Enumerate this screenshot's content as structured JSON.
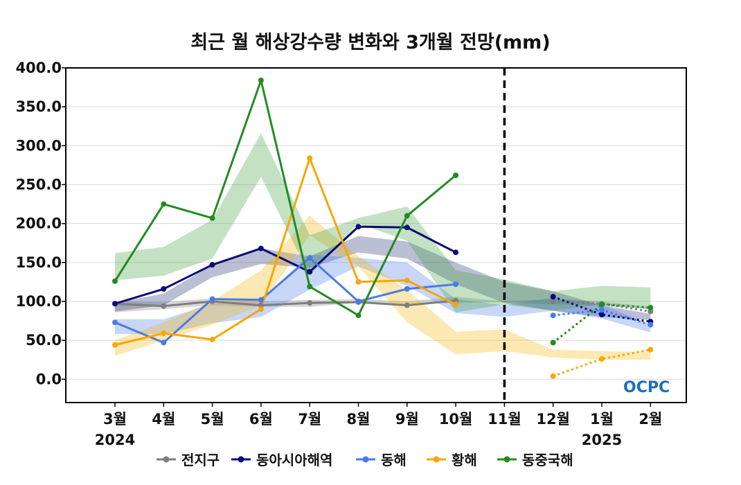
{
  "chart_data": {
    "type": "line",
    "title": "최근 월 해상강수량 변화와 3개월 전망(mm)",
    "categories": [
      "3월",
      "4월",
      "5월",
      "6월",
      "7월",
      "8월",
      "9월",
      "10월",
      "11월",
      "12월",
      "1월",
      "2월"
    ],
    "year_labels": [
      {
        "category": "3월",
        "text": "2024"
      },
      {
        "category": "1월",
        "text": "2025"
      }
    ],
    "ylim": [
      -30,
      400
    ],
    "yticks": [
      "0.0",
      "50.0",
      "100.0",
      "150.0",
      "200.0",
      "250.0",
      "300.0",
      "350.0",
      "400.0"
    ],
    "forecast_divider_category": "11월",
    "grid": true,
    "legend_position": "bottom",
    "logo": "OCPC",
    "series": [
      {
        "name": "전지구",
        "color": "#7f7f7f",
        "band_color": "#7f7f7f",
        "observed": [
          97,
          94,
          100,
          95,
          98,
          99,
          95,
          101,
          null,
          null,
          null,
          null
        ],
        "forecast": [
          null,
          null,
          null,
          null,
          null,
          null,
          null,
          null,
          null,
          100,
          97,
          87
        ],
        "band_low": [
          86,
          90,
          95,
          93,
          93,
          98,
          96,
          98,
          99,
          96,
          95,
          90
        ],
        "band_high": [
          100,
          99,
          104,
          100,
          102,
          103,
          100,
          106,
          100,
          103,
          100,
          93
        ]
      },
      {
        "name": "동아시아해역",
        "color": "#0a0a78",
        "band_color": "#1e2a70",
        "observed": [
          97,
          116,
          147,
          168,
          138,
          196,
          195,
          163,
          null,
          null,
          null,
          null
        ],
        "forecast": [
          null,
          null,
          null,
          null,
          null,
          null,
          null,
          null,
          null,
          106,
          83,
          74
        ],
        "band_low": [
          87,
          95,
          131,
          148,
          143,
          163,
          155,
          122,
          98,
          88,
          80,
          76
        ],
        "band_high": [
          98,
          110,
          147,
          168,
          158,
          184,
          177,
          150,
          125,
          113,
          95,
          84
        ]
      },
      {
        "name": "동해",
        "color": "#4a7ae8",
        "band_color": "#4a7ae8",
        "observed": [
          73,
          47,
          103,
          102,
          156,
          100,
          116,
          122,
          null,
          null,
          null,
          null
        ],
        "forecast": [
          null,
          null,
          null,
          null,
          null,
          null,
          null,
          null,
          null,
          82,
          89,
          70
        ],
        "band_low": [
          58,
          58,
          72,
          80,
          115,
          145,
          120,
          85,
          80,
          88,
          78,
          60
        ],
        "band_high": [
          77,
          77,
          97,
          103,
          160,
          156,
          150,
          103,
          95,
          105,
          96,
          70
        ]
      },
      {
        "name": "황해",
        "color": "#f5a700",
        "band_color": "#f5b400",
        "observed": [
          44,
          59,
          51,
          90,
          284,
          125,
          127,
          96,
          null,
          null,
          null,
          null
        ],
        "forecast": [
          null,
          null,
          null,
          null,
          null,
          null,
          null,
          null,
          null,
          4,
          26,
          38
        ],
        "band_low": [
          30,
          50,
          70,
          95,
          185,
          145,
          73,
          32,
          36,
          28,
          25,
          25
        ],
        "band_high": [
          50,
          73,
          100,
          140,
          210,
          158,
          115,
          61,
          64,
          38,
          36,
          35
        ]
      },
      {
        "name": "동중국해",
        "color": "#228b22",
        "band_color": "#3a9a3a",
        "observed": [
          126,
          225,
          207,
          384,
          119,
          82,
          210,
          262,
          null,
          null,
          null,
          null
        ],
        "forecast": [
          null,
          null,
          null,
          null,
          null,
          null,
          null,
          null,
          null,
          47,
          96,
          92
        ],
        "band_low": [
          127,
          133,
          155,
          260,
          133,
          200,
          178,
          86,
          96,
          88,
          96,
          90
        ],
        "band_high": [
          162,
          170,
          205,
          316,
          185,
          207,
          222,
          140,
          128,
          113,
          120,
          118
        ]
      }
    ]
  }
}
